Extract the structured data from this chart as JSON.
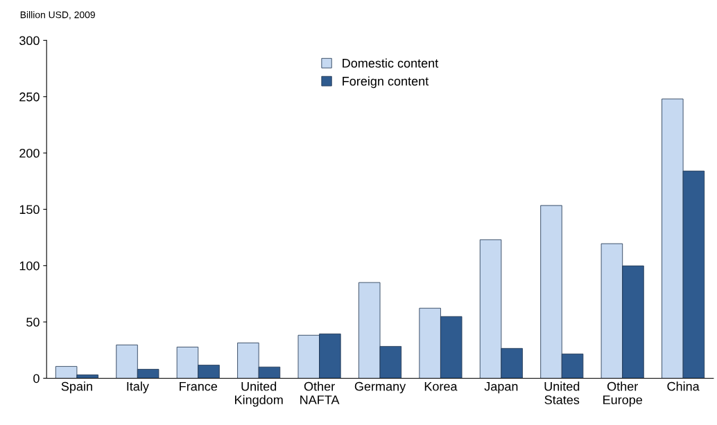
{
  "chart_data": {
    "type": "bar",
    "ylabel": "Billion USD, 2009",
    "categories": [
      "Spain",
      "Italy",
      "France",
      "United\nKingdom",
      "Other\nNAFTA",
      "Germany",
      "Korea",
      "Japan",
      "United\nStates",
      "Other\nEurope",
      "China"
    ],
    "series": [
      {
        "name": "Domestic content",
        "color": "#c6d9f1",
        "values": [
          10.5,
          29.6,
          27.7,
          31.4,
          38.2,
          85,
          62.2,
          123,
          153.4,
          119.5,
          248
        ]
      },
      {
        "name": "Foreign content",
        "color": "#2f5b8f",
        "values": [
          3,
          8,
          11.7,
          10,
          39.4,
          28.3,
          54.8,
          26.5,
          21.6,
          99.8,
          184
        ]
      }
    ],
    "ylim": [
      0,
      300
    ],
    "yticks": [
      0,
      50,
      100,
      150,
      200,
      250,
      300
    ],
    "grid": false,
    "legend": "top"
  }
}
